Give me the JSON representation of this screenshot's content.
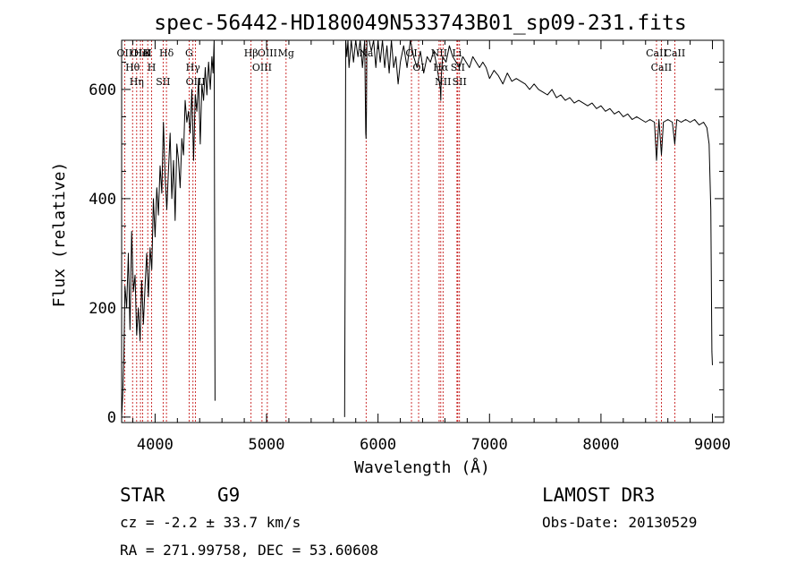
{
  "chart_data": {
    "type": "line",
    "title": "spec-56442-HD180049N533743B01_sp09-231.fits",
    "xlabel": "Wavelength (Å)",
    "ylabel": "Flux (relative)",
    "xlim": [
      3700,
      9100
    ],
    "ylim": [
      -10,
      690
    ],
    "xticks": [
      4000,
      5000,
      6000,
      7000,
      8000,
      9000
    ],
    "yticks": [
      0,
      200,
      400,
      600
    ],
    "series": [
      {
        "name": "flux",
        "segments": [
          {
            "x": [
              3700,
              3710,
              3720,
              3730,
              3745,
              3760,
              3775,
              3790,
              3805,
              3820,
              3835,
              3850,
              3865,
              3880,
              3895,
              3910,
              3925,
              3940,
              3955,
              3970,
              3985,
              4000,
              4015,
              4030,
              4045,
              4060,
              4075,
              4090,
              4105,
              4120,
              4135,
              4150,
              4165,
              4180,
              4195,
              4210,
              4225,
              4240,
              4255,
              4270,
              4285,
              4300,
              4315,
              4330,
              4345,
              4360,
              4375,
              4390,
              4405,
              4420,
              4435,
              4450,
              4465,
              4480,
              4495,
              4510,
              4520,
              4530,
              4538
            ],
            "y": [
              0,
              40,
              110,
              240,
              200,
              300,
              160,
              340,
              230,
              260,
              150,
              200,
              140,
              250,
              170,
              240,
              300,
              220,
              310,
              270,
              400,
              330,
              420,
              370,
              460,
              410,
              540,
              440,
              380,
              450,
              520,
              400,
              470,
              360,
              500,
              470,
              420,
              510,
              480,
              580,
              540,
              560,
              520,
              600,
              470,
              590,
              560,
              620,
              500,
              610,
              580,
              640,
              590,
              650,
              600,
              660,
              630,
              690,
              30
            ]
          },
          {
            "x": [
              5700,
              5705,
              5710,
              5720,
              5730,
              5740,
              5760,
              5780,
              5800,
              5820,
              5840,
              5860,
              5880,
              5890,
              5893,
              5896,
              5900,
              5920,
              5940,
              5960,
              5980,
              6000,
              6020,
              6040,
              6060,
              6080,
              6100,
              6120,
              6140,
              6160,
              6180,
              6200,
              6230,
              6260,
              6290,
              6320,
              6350,
              6380,
              6410,
              6440,
              6470,
              6500,
              6530,
              6560,
              6563,
              6566,
              6580,
              6610,
              6640,
              6670,
              6700,
              6730,
              6760,
              6790,
              6820,
              6850,
              6880,
              6910,
              6940,
              6970,
              7000,
              7040,
              7080,
              7120,
              7160,
              7200,
              7240,
              7280,
              7320,
              7360,
              7400,
              7440,
              7480,
              7520,
              7560,
              7600,
              7640,
              7680,
              7720,
              7760,
              7800,
              7840,
              7880,
              7920,
              7960,
              8000,
              8040,
              8080,
              8120,
              8160,
              8200,
              8240,
              8280,
              8320,
              8360,
              8400,
              8440,
              8480,
              8498,
              8520,
              8542,
              8560,
              8600,
              8640,
              8662,
              8680,
              8720,
              8760,
              8800,
              8840,
              8880,
              8920,
              8950,
              8970,
              8985,
              8995,
              9000
            ],
            "y": [
              0,
              300,
              690,
              660,
              700,
              640,
              700,
              650,
              720,
              660,
              700,
              640,
              690,
              520,
              510,
              560,
              690,
              710,
              670,
              700,
              640,
              690,
              650,
              700,
              640,
              680,
              630,
              690,
              640,
              660,
              610,
              650,
              680,
              640,
              700,
              660,
              640,
              670,
              630,
              660,
              650,
              670,
              640,
              600,
              580,
              620,
              660,
              650,
              680,
              660,
              650,
              640,
              660,
              650,
              640,
              660,
              650,
              640,
              650,
              640,
              620,
              635,
              625,
              610,
              630,
              615,
              620,
              615,
              610,
              600,
              610,
              600,
              595,
              590,
              600,
              585,
              590,
              580,
              585,
              575,
              580,
              575,
              570,
              575,
              565,
              570,
              560,
              565,
              555,
              560,
              550,
              555,
              545,
              550,
              545,
              540,
              545,
              540,
              470,
              545,
              480,
              540,
              545,
              540,
              500,
              545,
              540,
              545,
              540,
              545,
              535,
              540,
              530,
              500,
              380,
              120,
              95
            ]
          }
        ]
      }
    ],
    "lines": [
      {
        "label": "Hθ",
        "x": 3798
      },
      {
        "label": "OII",
        "x": 3727
      },
      {
        "label": "OIII",
        "x": 3869
      },
      {
        "label": "K",
        "x": 3934
      },
      {
        "label": "HeI",
        "x": 3889
      },
      {
        "label": "Hη",
        "x": 3835
      },
      {
        "label": "H",
        "x": 3969
      },
      {
        "label": "Hδ",
        "x": 4102
      },
      {
        "label": "SII",
        "x": 4072
      },
      {
        "label": "OIII",
        "x": 4363
      },
      {
        "label": "Hγ",
        "x": 4340
      },
      {
        "label": "G",
        "x": 4305
      },
      {
        "label": "Hβ",
        "x": 4861
      },
      {
        "label": "OIII",
        "x": 4959
      },
      {
        "label": "OIII",
        "x": 5007
      },
      {
        "label": "Mg",
        "x": 5175
      },
      {
        "label": "Na",
        "x": 5893
      },
      {
        "label": "OI",
        "x": 6300
      },
      {
        "label": "OI",
        "x": 6364
      },
      {
        "label": "Hα",
        "x": 6563
      },
      {
        "label": "NII",
        "x": 6548
      },
      {
        "label": "NII",
        "x": 6583
      },
      {
        "label": "SII",
        "x": 6716
      },
      {
        "label": "SII",
        "x": 6731
      },
      {
        "label": "Li",
        "x": 6708
      },
      {
        "label": "CaII",
        "x": 8498
      },
      {
        "label": "CaII",
        "x": 8542
      },
      {
        "label": "CaII",
        "x": 8662
      }
    ]
  },
  "info": {
    "object_type": "STAR",
    "subclass": "G9",
    "survey": "LAMOST DR3",
    "cz": "cz = -2.2 ± 33.7 km/s",
    "obs_date": "Obs-Date: 20130529",
    "coords": "RA = 271.99758, DEC =  53.60608"
  },
  "colors": {
    "line": "#000000",
    "marker": "#c00000"
  }
}
